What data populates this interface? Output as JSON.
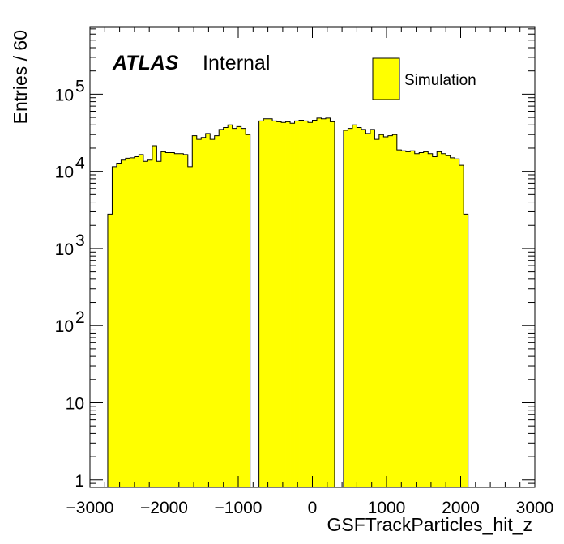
{
  "chart_data": {
    "type": "bar",
    "title": "",
    "xlabel": "GSFTrackParticles_hit_z",
    "ylabel": "Entries / 60",
    "xlim": [
      -3000,
      3000
    ],
    "ylim": [
      0.8,
      750000
    ],
    "yscale": "log",
    "bin_width": 60,
    "x_ticks": [
      {
        "value": -3000,
        "label": "−3000"
      },
      {
        "value": -2000,
        "label": "−2000"
      },
      {
        "value": -1000,
        "label": "−1000"
      },
      {
        "value": 0,
        "label": "0"
      },
      {
        "value": 1000,
        "label": "1000"
      },
      {
        "value": 2000,
        "label": "2000"
      },
      {
        "value": 3000,
        "label": "3000"
      }
    ],
    "y_ticks": [
      {
        "value": 1,
        "base": "1",
        "exp": ""
      },
      {
        "value": 10,
        "base": "10",
        "exp": ""
      },
      {
        "value": 100,
        "base": "10",
        "exp": "2"
      },
      {
        "value": 1000,
        "base": "10",
        "exp": "3"
      },
      {
        "value": 10000,
        "base": "10",
        "exp": "4"
      },
      {
        "value": 100000,
        "base": "10",
        "exp": "5"
      }
    ],
    "annotation": {
      "experiment": "ATLAS",
      "status": "Internal"
    },
    "legend": {
      "position": "top-right",
      "label": "Simulation"
    },
    "fill_color": "#ffff00",
    "line_color": "#000000",
    "series": [
      {
        "name": "Simulation",
        "bin_edges_start": -2760,
        "values": [
          2800,
          11500,
          12800,
          14000,
          14800,
          15000,
          15500,
          16500,
          13500,
          14000,
          21500,
          13500,
          18000,
          17500,
          17500,
          17000,
          17000,
          16500,
          11500,
          29000,
          26000,
          27500,
          31000,
          26000,
          29000,
          35000,
          37000,
          40000,
          36000,
          38000,
          36000,
          30000,
          0,
          0,
          45000,
          48000,
          48000,
          45000,
          44000,
          43000,
          44000,
          42000,
          45000,
          46000,
          45000,
          43000,
          46000,
          49000,
          48000,
          49000,
          44000,
          0,
          0,
          34000,
          36000,
          40000,
          37000,
          35000,
          31000,
          35000,
          26000,
          30000,
          28000,
          29000,
          30000,
          19000,
          18500,
          18000,
          18500,
          17000,
          17500,
          18000,
          17000,
          15500,
          18000,
          17000,
          16000,
          15000,
          14500,
          12000,
          2800
        ]
      }
    ]
  }
}
